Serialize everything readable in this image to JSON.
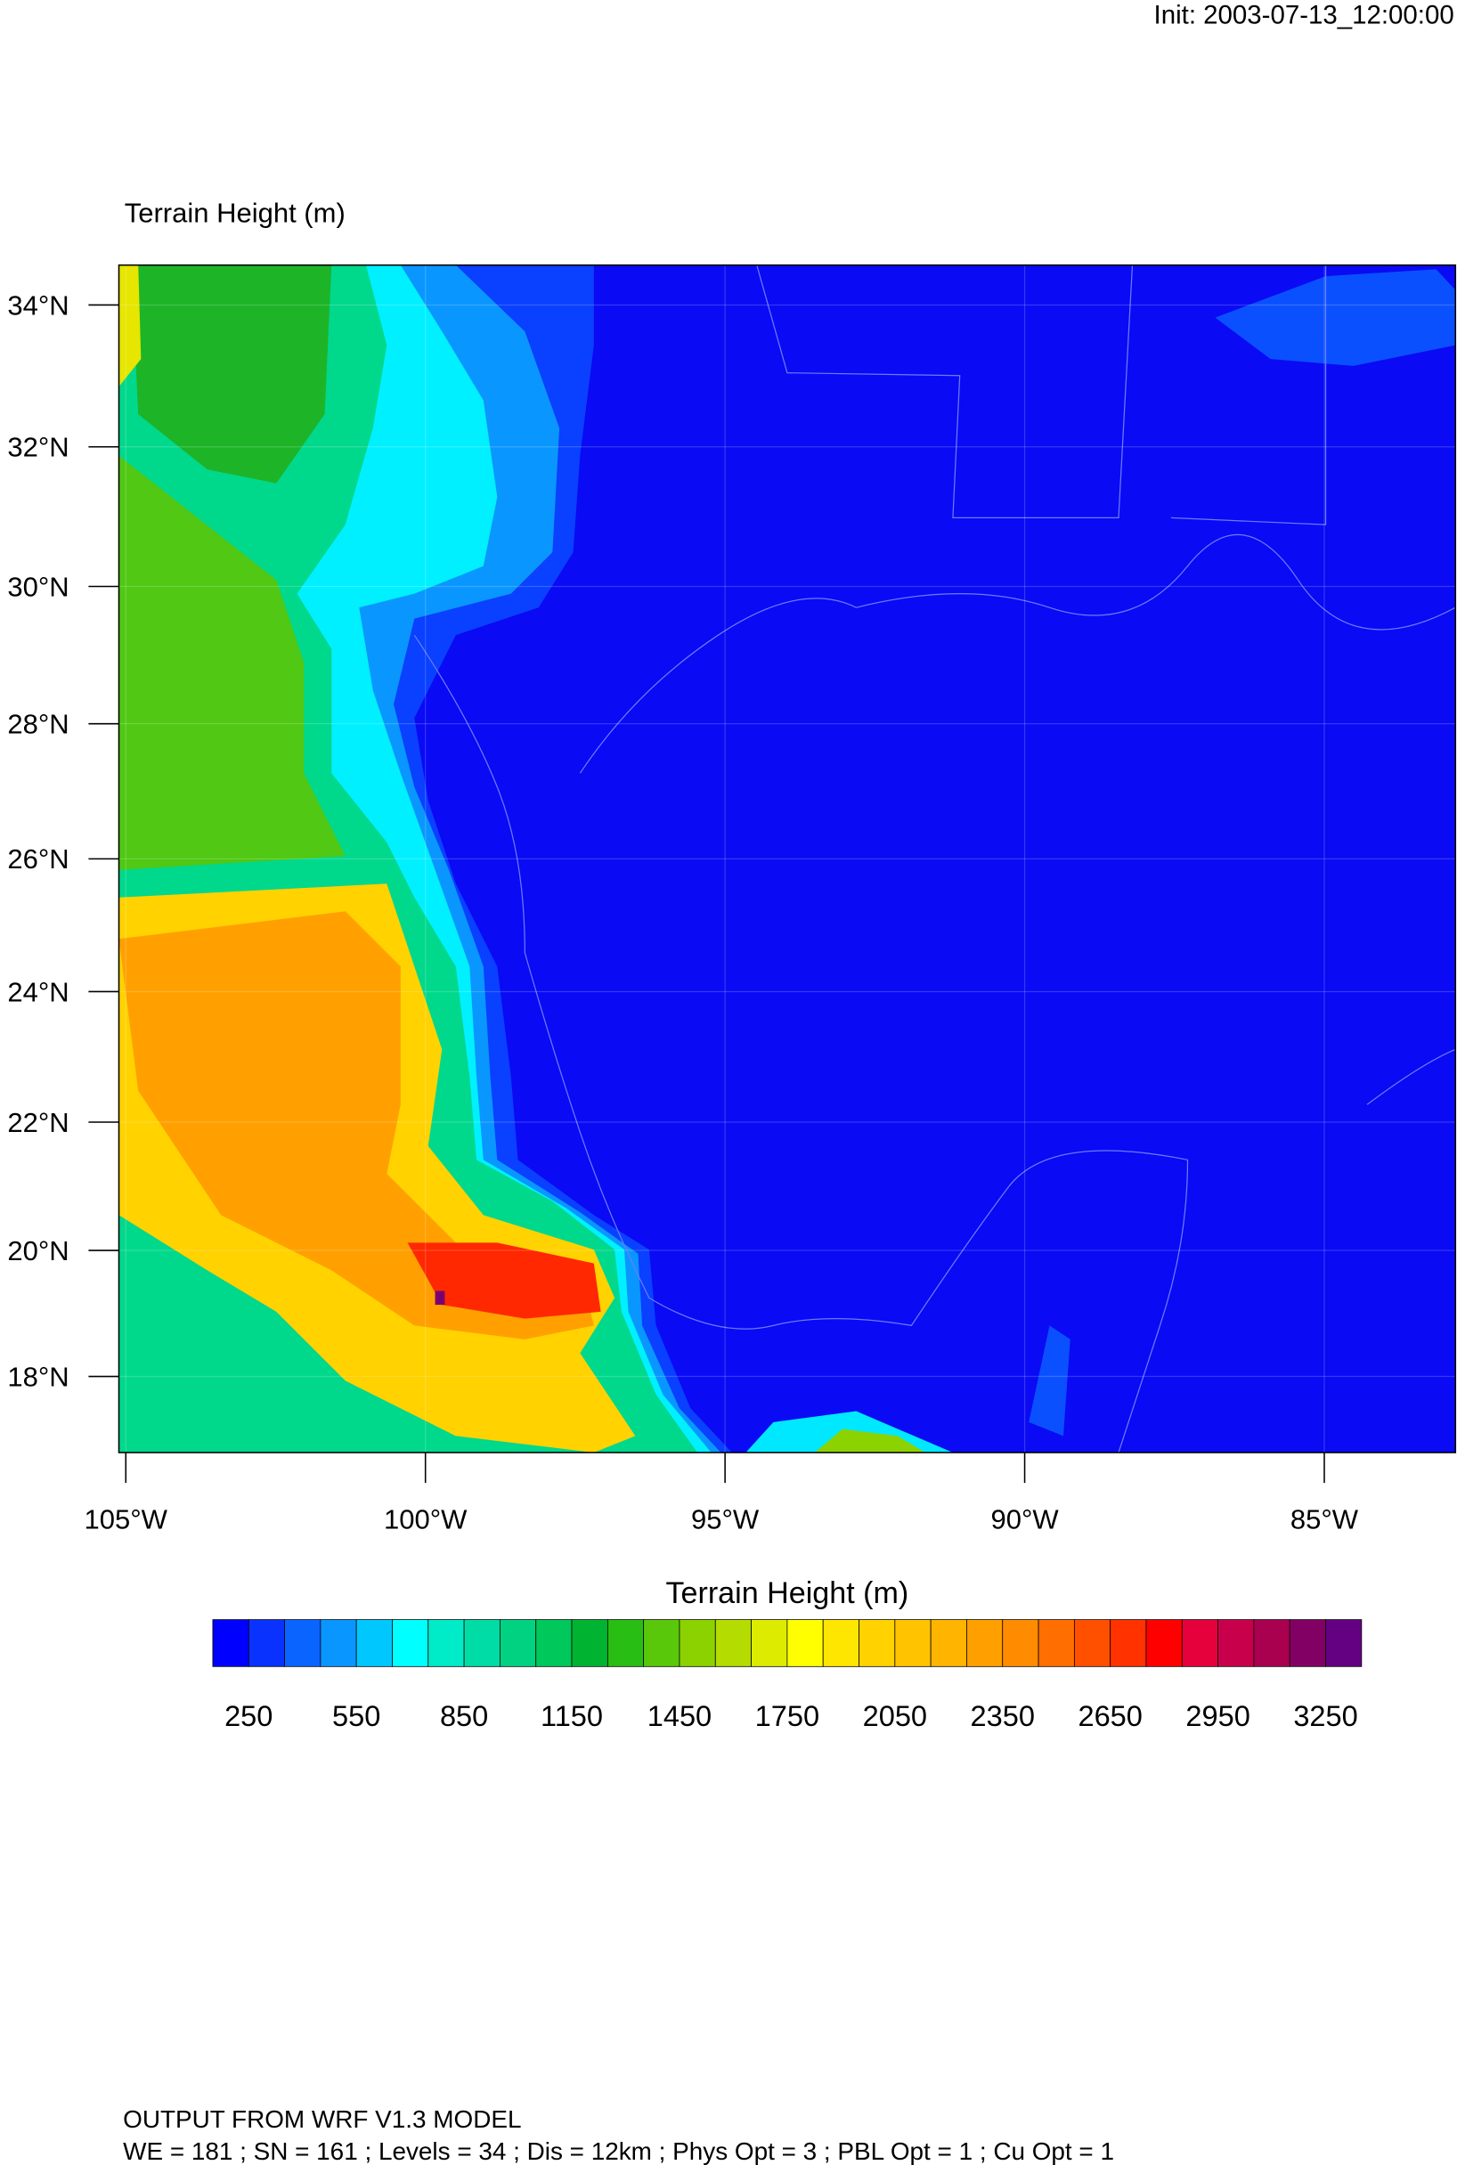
{
  "header": {
    "init": "Init: 2003-07-13_12:00:00"
  },
  "map": {
    "title": "Terrain Height   (m)",
    "lat_ticks": [
      {
        "value": 34,
        "label": "34°N"
      },
      {
        "value": 32,
        "label": "32°N"
      },
      {
        "value": 30,
        "label": "30°N"
      },
      {
        "value": 28,
        "label": "28°N"
      },
      {
        "value": 26,
        "label": "26°N"
      },
      {
        "value": 24,
        "label": "24°N"
      },
      {
        "value": 22,
        "label": "22°N"
      },
      {
        "value": 20,
        "label": "20°N"
      },
      {
        "value": 18,
        "label": "18°N"
      }
    ],
    "lon_ticks": [
      {
        "value": -105,
        "label": "105°W"
      },
      {
        "value": -100,
        "label": "100°W"
      },
      {
        "value": -95,
        "label": "95°W"
      },
      {
        "value": -90,
        "label": "90°W"
      },
      {
        "value": -85,
        "label": "85°W"
      }
    ]
  },
  "colorbar": {
    "title": "Terrain Height  (m)",
    "ticks": [
      250,
      550,
      850,
      1150,
      1450,
      1750,
      2050,
      2350,
      2650,
      2950,
      3250
    ],
    "colors": [
      "#0000ff",
      "#0a32ff",
      "#0a64ff",
      "#0a96ff",
      "#00c8ff",
      "#00ffff",
      "#00ebc8",
      "#00dca5",
      "#00d282",
      "#00c85a",
      "#00b432",
      "#28be14",
      "#5ac80a",
      "#8cd200",
      "#b4dc00",
      "#dceb00",
      "#ffff00",
      "#ffe600",
      "#ffd200",
      "#ffc300",
      "#ffb400",
      "#ffa000",
      "#ff8c00",
      "#ff6e00",
      "#ff5000",
      "#ff3200",
      "#ff0000",
      "#e6003c",
      "#c8004b",
      "#aa0050",
      "#820064",
      "#640082"
    ]
  },
  "footer": {
    "line1": "OUTPUT FROM WRF V1.3 MODEL",
    "line2": "WE = 181 ; SN = 161 ; Levels = 34 ; Dis = 12km ; Phys Opt = 3 ; PBL Opt = 1 ; Cu Opt = 1"
  }
}
